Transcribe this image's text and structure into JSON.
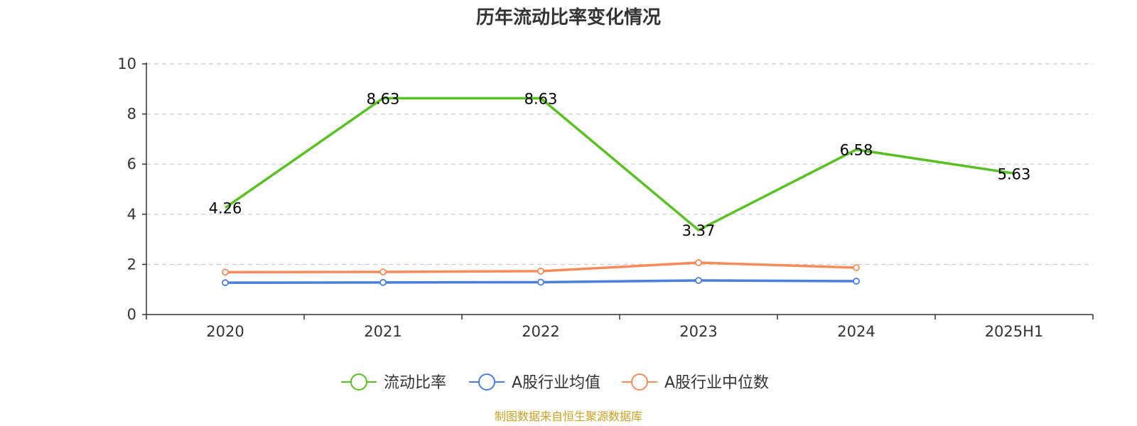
{
  "chart_data": {
    "type": "line",
    "title": "历年流动比率变化情况",
    "categories": [
      "2020",
      "2021",
      "2022",
      "2023",
      "2024",
      "2025H1"
    ],
    "ylim": [
      0,
      10
    ],
    "yticks": [
      0,
      2,
      4,
      6,
      8,
      10
    ],
    "grid": true,
    "legend_position": "bottom",
    "xlabel": "",
    "ylabel": "",
    "series": [
      {
        "name": "流动比率",
        "color": "#5ac024",
        "values": [
          4.26,
          8.63,
          8.63,
          3.37,
          6.58,
          5.63
        ],
        "labels": [
          "4.26",
          "8.63",
          "8.63",
          "3.37",
          "6.58",
          "5.63"
        ],
        "show_labels": true,
        "show_markers": false
      },
      {
        "name": "A股行业均值",
        "color": "#4a7fdc",
        "values": [
          1.27,
          1.28,
          1.29,
          1.36,
          1.33,
          null
        ],
        "show_labels": false,
        "show_markers": true
      },
      {
        "name": "A股行业中位数",
        "color": "#f78c5a",
        "values": [
          1.69,
          1.7,
          1.73,
          2.07,
          1.87,
          null
        ],
        "show_labels": false,
        "show_markers": true
      }
    ]
  },
  "source_note": "制图数据来自恒生聚源数据库"
}
